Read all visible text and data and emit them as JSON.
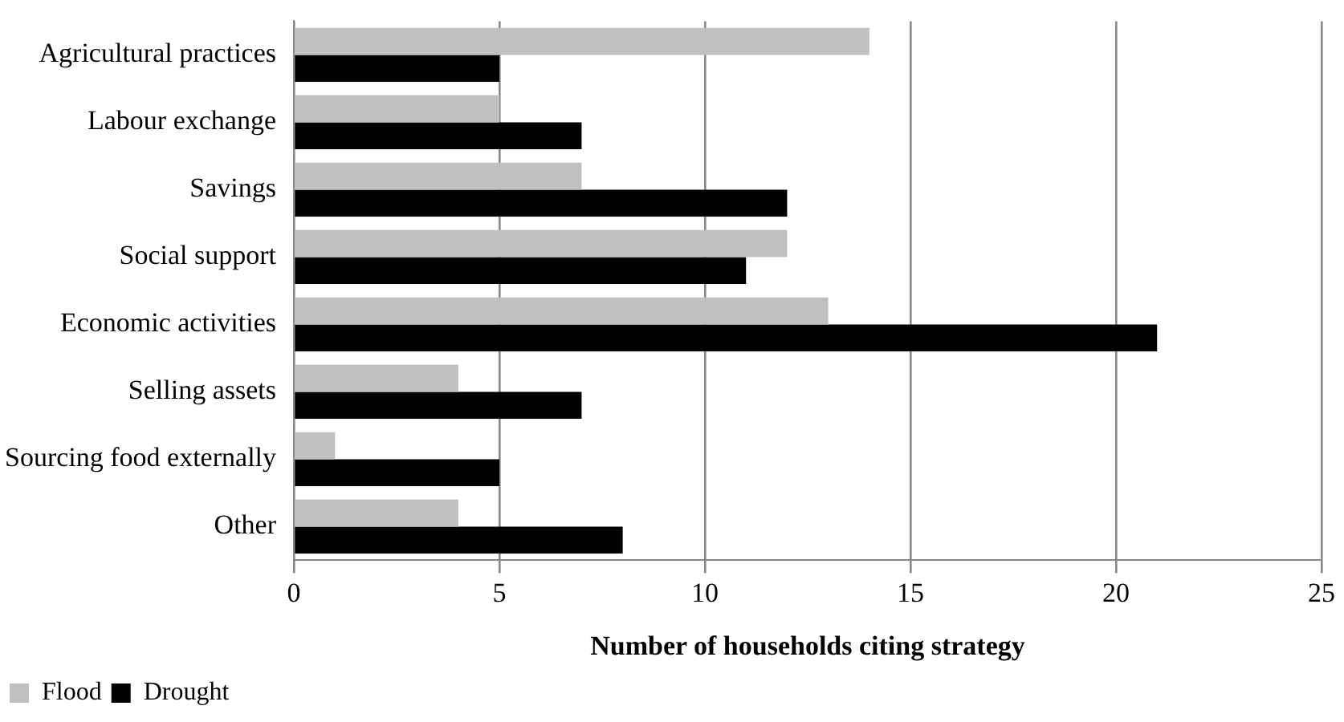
{
  "chart_data": {
    "type": "bar",
    "orientation": "horizontal",
    "xlabel": "Number of households citing strategy",
    "categories": [
      "Agricultural practices",
      "Labour exchange",
      "Savings",
      "Social support",
      "Economic activities",
      "Selling assets",
      "Sourcing food externally",
      "Other"
    ],
    "series": [
      {
        "name": "Flood",
        "color": "#c0c0c0",
        "values": [
          14,
          5,
          7,
          12,
          13,
          4,
          1,
          4
        ]
      },
      {
        "name": "Drought",
        "color": "#000000",
        "values": [
          5,
          7,
          12,
          11,
          21,
          7,
          5,
          8
        ]
      }
    ],
    "xlim": [
      0,
      25
    ],
    "xticks": [
      0,
      5,
      10,
      15,
      20,
      25
    ],
    "grid": "x",
    "legend": "bottom left"
  }
}
